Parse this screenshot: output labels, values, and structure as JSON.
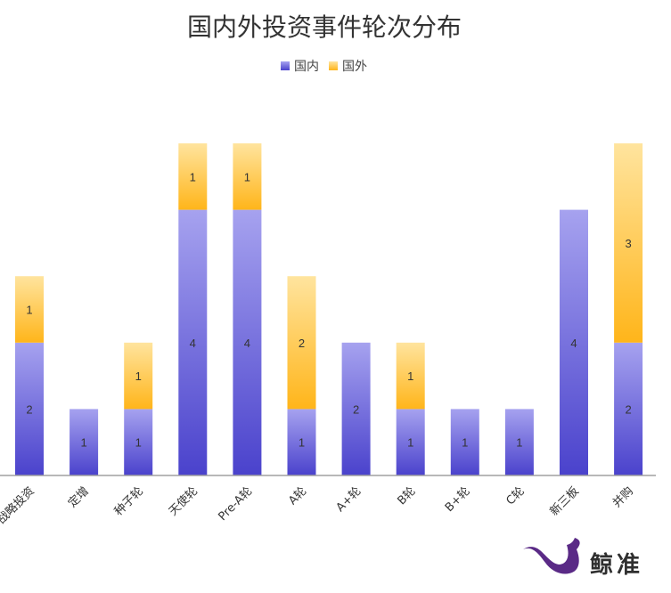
{
  "chart_data": {
    "type": "bar",
    "stacked": true,
    "title": "国内外投资事件轮次分布",
    "categories": [
      "战略投资",
      "定增",
      "种子轮",
      "天使轮",
      "Pre-A轮",
      "A轮",
      "A+轮",
      "B轮",
      "B+轮",
      "C轮",
      "新三板",
      "并购"
    ],
    "series": [
      {
        "name": "国内",
        "values": [
          2,
          1,
          1,
          4,
          4,
          1,
          2,
          1,
          1,
          1,
          4,
          2
        ],
        "color": "#5b55d8"
      },
      {
        "name": "国外",
        "values": [
          1,
          0,
          1,
          1,
          1,
          2,
          0,
          1,
          0,
          0,
          0,
          3
        ],
        "color": "#ffc233"
      }
    ],
    "ylim": [
      0,
      5
    ],
    "legend_position": "top-center",
    "grid": false,
    "xlabel": "",
    "ylabel": ""
  },
  "brand": {
    "logo_icon": "whale-icon",
    "name": "鲸准",
    "logo_color": "#5a2a86"
  }
}
